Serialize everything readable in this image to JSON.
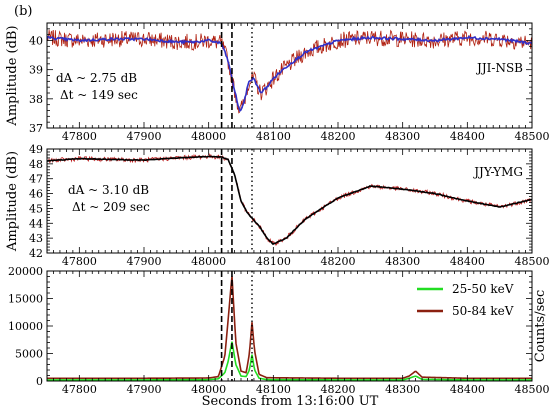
{
  "figure": {
    "panel_label": "(b)",
    "xlabel": "Seconds from 13:16:00 UT"
  },
  "chart_data": [
    {
      "type": "line",
      "station": "JJI-NSB",
      "ylabel": "Amplitude (dB)",
      "xlim": [
        47750,
        48500
      ],
      "ylim": [
        37,
        40.6
      ],
      "x_ticks": [
        47800,
        47900,
        48000,
        48100,
        48200,
        48300,
        48400,
        48500
      ],
      "y_ticks": [
        37,
        38,
        39,
        40
      ],
      "annotations": [
        "dA ~ 2.75 dB",
        "Δt ~ 149 sec"
      ],
      "vlines_dashed": [
        48020,
        48036
      ],
      "vlines_dotted": [
        48067
      ],
      "noise_amplitude": 0.28,
      "series": [
        {
          "role": "raw",
          "color": "#b02010",
          "x": [
            47750,
            47800,
            47850,
            47900,
            47950,
            47980,
            48000,
            48020,
            48030,
            48040,
            48048,
            48055,
            48062,
            48070,
            48080,
            48090,
            48100,
            48120,
            48150,
            48200,
            48250,
            48300,
            48350,
            48400,
            48450,
            48500
          ],
          "y": [
            40.1,
            40.0,
            40.05,
            40.05,
            39.95,
            39.95,
            40.0,
            39.9,
            39.3,
            38.3,
            37.55,
            37.9,
            38.6,
            38.7,
            38.2,
            38.4,
            38.7,
            39.1,
            39.6,
            40.0,
            40.1,
            40.05,
            40.0,
            40.1,
            40.05,
            39.9
          ]
        },
        {
          "role": "smoothed",
          "color": "#3030c8",
          "x": [
            47750,
            47800,
            47850,
            47900,
            47950,
            47980,
            48000,
            48020,
            48030,
            48040,
            48048,
            48055,
            48062,
            48070,
            48080,
            48090,
            48100,
            48120,
            48150,
            48200,
            48250,
            48300,
            48350,
            48400,
            48450,
            48500
          ],
          "y": [
            40.1,
            40.0,
            40.05,
            40.05,
            39.95,
            39.95,
            40.0,
            39.9,
            39.3,
            38.3,
            37.55,
            37.9,
            38.6,
            38.7,
            38.2,
            38.4,
            38.7,
            39.1,
            39.6,
            40.0,
            40.1,
            40.05,
            40.0,
            40.1,
            40.05,
            39.9
          ]
        }
      ]
    },
    {
      "type": "line",
      "station": "JJY-YMG",
      "ylabel": "Amplitude (dB)",
      "xlim": [
        47750,
        48500
      ],
      "ylim": [
        42,
        49
      ],
      "x_ticks": [
        47800,
        47900,
        48000,
        48100,
        48200,
        48300,
        48400,
        48500
      ],
      "y_ticks": [
        42,
        43,
        44,
        45,
        46,
        47,
        48,
        49
      ],
      "annotations": [
        "dA ~ 3.10 dB",
        "Δt ~ 209 sec"
      ],
      "vlines_dashed": [
        48020,
        48036
      ],
      "vlines_dotted": [
        48067
      ],
      "noise_amplitude": 0.15,
      "series": [
        {
          "role": "raw",
          "color": "#c02020",
          "x": [
            47750,
            47800,
            47850,
            47900,
            47950,
            48000,
            48020,
            48030,
            48040,
            48050,
            48060,
            48070,
            48080,
            48090,
            48100,
            48120,
            48150,
            48200,
            48250,
            48300,
            48350,
            48400,
            48450,
            48500
          ],
          "y": [
            48.2,
            48.35,
            48.3,
            48.25,
            48.4,
            48.5,
            48.45,
            48.3,
            47.3,
            45.5,
            44.7,
            44.2,
            43.7,
            43.0,
            42.6,
            43.0,
            44.3,
            45.7,
            46.5,
            46.3,
            46.0,
            45.5,
            45.1,
            45.6
          ]
        },
        {
          "role": "smoothed",
          "color": "#000000",
          "x": [
            47750,
            47800,
            47850,
            47900,
            47950,
            48000,
            48020,
            48030,
            48040,
            48050,
            48060,
            48070,
            48080,
            48090,
            48100,
            48120,
            48150,
            48200,
            48250,
            48300,
            48350,
            48400,
            48450,
            48500
          ],
          "y": [
            48.2,
            48.35,
            48.3,
            48.25,
            48.4,
            48.5,
            48.45,
            48.3,
            47.3,
            45.5,
            44.7,
            44.2,
            43.7,
            43.0,
            42.6,
            43.0,
            44.3,
            45.7,
            46.5,
            46.3,
            46.0,
            45.5,
            45.1,
            45.6
          ]
        }
      ]
    },
    {
      "type": "line",
      "ylabel": "Counts/sec",
      "xlim": [
        47750,
        48500
      ],
      "ylim": [
        0,
        20000
      ],
      "x_ticks": [
        47800,
        47900,
        48000,
        48100,
        48200,
        48300,
        48400,
        48500
      ],
      "y_ticks": [
        0,
        5000,
        10000,
        15000,
        20000
      ],
      "legend_position": "top-right",
      "vlines_dashed": [
        48020,
        48036
      ],
      "vlines_dotted": [
        48067
      ],
      "series": [
        {
          "name": "25-50 keV",
          "color": "#22dd22",
          "x": [
            47750,
            47900,
            48000,
            48015,
            48025,
            48030,
            48036,
            48042,
            48050,
            48058,
            48063,
            48067,
            48071,
            48078,
            48090,
            48200,
            48300,
            48310,
            48320,
            48330,
            48400,
            48500
          ],
          "y": [
            200,
            200,
            250,
            400,
            1500,
            3500,
            7200,
            3000,
            900,
            800,
            2000,
            4800,
            2000,
            500,
            250,
            200,
            200,
            500,
            900,
            300,
            200,
            200
          ]
        },
        {
          "name": "50-84 keV",
          "color": "#8b2010",
          "x": [
            47750,
            47900,
            48000,
            48015,
            48025,
            48030,
            48036,
            48042,
            48050,
            48058,
            48063,
            48067,
            48071,
            48078,
            48090,
            48200,
            48300,
            48310,
            48320,
            48330,
            48400,
            48500
          ],
          "y": [
            500,
            500,
            550,
            800,
            4500,
            11000,
            19200,
            7000,
            1800,
            1500,
            5000,
            10700,
            5500,
            1200,
            600,
            500,
            500,
            900,
            1800,
            700,
            500,
            500
          ]
        }
      ]
    }
  ]
}
